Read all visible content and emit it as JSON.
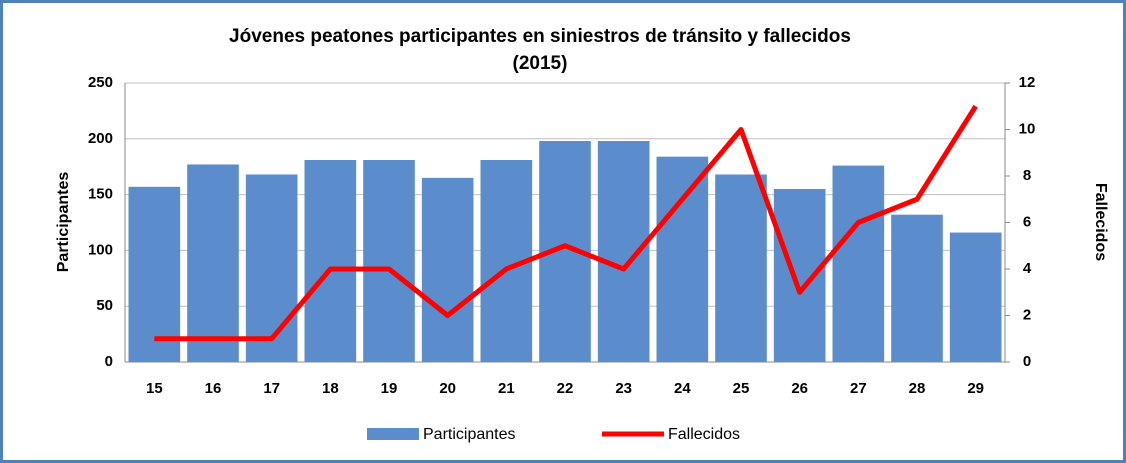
{
  "chart_data": {
    "type": "bar-line",
    "title": [
      "Jóvenes peatones participantes  en siniestros de tránsito y fallecidos",
      "(2015)"
    ],
    "y_label": "Participantes",
    "y2_label": "Fallecidos",
    "categories": [
      "15",
      "16",
      "17",
      "18",
      "19",
      "20",
      "21",
      "22",
      "23",
      "24",
      "25",
      "26",
      "27",
      "28",
      "29"
    ],
    "series": [
      {
        "name": "Participantes",
        "type": "bar",
        "color": "#5b8ccc",
        "values": [
          157,
          177,
          168,
          181,
          181,
          165,
          181,
          198,
          198,
          184,
          168,
          155,
          176,
          132,
          116
        ]
      },
      {
        "name": "Fallecidos",
        "type": "line",
        "axis": "y2",
        "color": "#ff0000",
        "values": [
          1,
          1,
          1,
          4,
          4,
          2,
          4,
          5,
          4,
          7,
          10,
          3,
          6,
          7,
          11
        ]
      }
    ],
    "ylim": [
      0,
      250
    ],
    "yticks": [
      0,
      50,
      100,
      150,
      200,
      250
    ],
    "y2lim": [
      0,
      12
    ],
    "y2ticks": [
      0,
      2,
      4,
      6,
      8,
      10,
      12
    ],
    "grid": true,
    "legend": "bottom"
  }
}
